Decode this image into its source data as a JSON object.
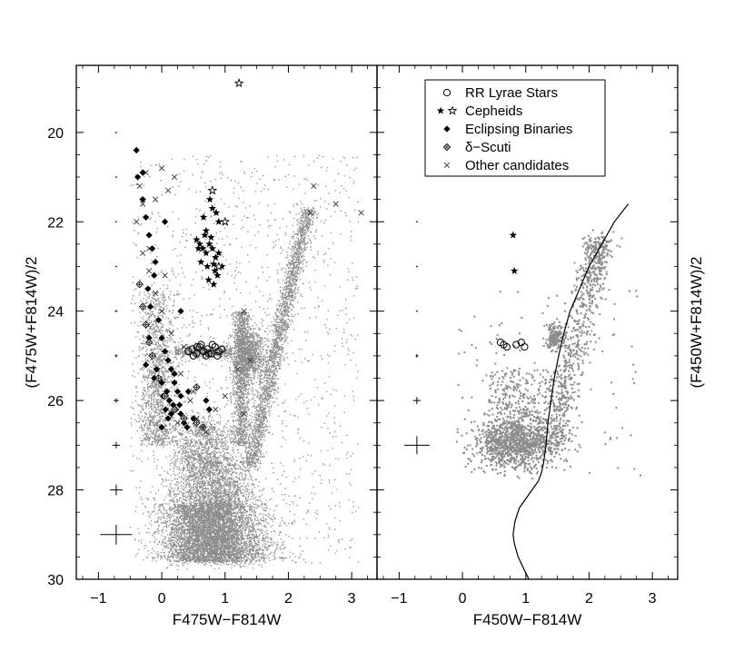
{
  "colors": {
    "background": "#ffffff",
    "axes": "#000000",
    "field_stars": "#8c8c8c",
    "variables": "#000000"
  },
  "chart_data": [
    {
      "type": "scatter",
      "panel": "left",
      "xlabel": "F475W−F814W",
      "ylabel": "(F475W+F814W)/2",
      "xlim": [
        -1.35,
        3.4
      ],
      "ylim": [
        30.0,
        18.5
      ],
      "y_inverted": true,
      "xticks": [
        "−1",
        "0",
        "1",
        "2",
        "3"
      ],
      "xtick_values": [
        -1,
        0,
        1,
        2,
        3
      ],
      "yticks": [
        "20",
        "22",
        "24",
        "26",
        "28",
        "30"
      ],
      "ytick_values": [
        20,
        22,
        24,
        26,
        28,
        30
      ],
      "grid": false,
      "field_population": {
        "description_marker": "small gray dots (dense)",
        "components": [
          {
            "name": "main sequence",
            "x_range": [
              -0.1,
              1.5
            ],
            "y_range": [
              26.3,
              29.6
            ]
          },
          {
            "name": "red giant branch",
            "x_range": [
              1.0,
              2.4
            ],
            "y_range": [
              21.7,
              27.5
            ]
          },
          {
            "name": "red clump",
            "x_center": 1.4,
            "y_center": 25.0
          },
          {
            "name": "blue plume",
            "x_range": [
              -0.4,
              0.3
            ],
            "y_range": [
              23.5,
              27.0
            ]
          },
          {
            "name": "horizontal branch",
            "x_range": [
              0.6,
              1.1
            ],
            "y_range": [
              24.8,
              25.0
            ]
          }
        ]
      },
      "series": [
        {
          "name": "RR Lyrae Stars",
          "marker": "circle-open",
          "x": [
            0.42,
            0.48,
            0.55,
            0.6,
            0.66,
            0.72,
            0.78,
            0.84,
            0.9,
            0.5,
            0.62,
            0.7,
            0.8,
            0.88,
            0.56,
            0.74,
            0.95
          ],
          "y": [
            24.9,
            24.85,
            24.95,
            24.8,
            24.9,
            24.85,
            24.95,
            24.8,
            24.9,
            25.0,
            24.75,
            25.0,
            24.75,
            25.0,
            24.8,
            24.95,
            24.85
          ]
        },
        {
          "name": "Cepheids",
          "marker": "star",
          "x": [
            0.55,
            0.6,
            0.65,
            0.7,
            0.75,
            0.8,
            0.85,
            0.9,
            0.62,
            0.72,
            0.82,
            0.68,
            0.78,
            0.88,
            0.58,
            0.74,
            0.84,
            0.66,
            0.8,
            0.9,
            0.76,
            0.86,
            0.7,
            0.82,
            0.95
          ],
          "y": [
            22.4,
            22.5,
            22.6,
            22.7,
            22.5,
            22.6,
            22.8,
            22.7,
            22.9,
            23.0,
            22.95,
            22.3,
            22.35,
            23.2,
            22.6,
            23.3,
            23.1,
            21.9,
            21.7,
            22.0,
            21.5,
            21.8,
            22.2,
            23.4,
            23.0
          ]
        },
        {
          "name": "Cepheids (open)",
          "marker": "star-open",
          "x": [
            1.22,
            0.8,
            1.0,
            0.9
          ],
          "y": [
            18.9,
            21.3,
            22.0,
            23.0
          ]
        },
        {
          "name": "Eclipsing Binaries",
          "marker": "diamond",
          "x": [
            -0.4,
            -0.38,
            -0.3,
            -0.25,
            -0.2,
            -0.15,
            -0.1,
            -0.12,
            -0.22,
            -0.18,
            -0.05,
            0.0,
            0.05,
            0.1,
            0.15,
            0.2,
            0.25,
            0.3,
            -0.2,
            -0.15,
            -0.08,
            0.0,
            0.08,
            0.12,
            0.18,
            0.22,
            0.3,
            0.35,
            0.4,
            -0.25,
            -0.12,
            0.02,
            0.15,
            0.28,
            0.42,
            0.5,
            0.7,
            0.75,
            0.0,
            0.1,
            0.06,
            0.2,
            0.3,
            -0.3,
            0.05
          ],
          "y": [
            20.4,
            21.0,
            21.5,
            21.9,
            22.3,
            22.6,
            22.9,
            23.2,
            23.5,
            23.9,
            24.2,
            24.6,
            24.9,
            25.1,
            25.3,
            25.6,
            25.8,
            25.9,
            24.6,
            25.0,
            25.3,
            25.6,
            25.8,
            26.0,
            26.1,
            26.2,
            26.3,
            26.5,
            26.6,
            25.2,
            25.5,
            25.9,
            26.3,
            26.1,
            25.8,
            26.4,
            26.0,
            26.2,
            26.6,
            26.4,
            26.2,
            25.4,
            24.0,
            20.9,
            22.0
          ]
        },
        {
          "name": "δ−Scuti",
          "marker": "diamond-open",
          "x": [
            -0.35,
            -0.3,
            -0.25,
            -0.2,
            -0.15,
            -0.05,
            0.05,
            0.2,
            0.35,
            0.55,
            0.65,
            0.55
          ],
          "y": [
            23.4,
            23.9,
            24.3,
            24.7,
            25.0,
            25.5,
            25.9,
            26.2,
            26.4,
            26.5,
            26.6,
            25.7
          ]
        },
        {
          "name": "Other candidates",
          "marker": "cross",
          "x": [
            -0.35,
            -0.3,
            -0.25,
            -0.1,
            0.0,
            0.1,
            0.2,
            -0.4,
            -0.3,
            -0.2,
            -0.1,
            0.0,
            0.15,
            0.3,
            0.45,
            0.55,
            0.65,
            0.7,
            0.85,
            1.0,
            1.2,
            1.3,
            1.4,
            2.4,
            2.75,
            3.15,
            2.35,
            -0.2,
            0.05,
            0.35,
            0.5,
            0.25,
            1.3
          ],
          "y": [
            21.2,
            21.6,
            20.9,
            21.5,
            20.8,
            21.3,
            21.0,
            22.0,
            22.7,
            23.1,
            23.6,
            24.0,
            24.5,
            25.4,
            26.0,
            26.4,
            26.6,
            26.7,
            26.2,
            25.9,
            25.3,
            24.0,
            25.1,
            21.2,
            21.6,
            21.8,
            21.8,
            22.6,
            23.2,
            24.8,
            25.8,
            26.5,
            26.3
          ]
        }
      ],
      "error_bars": [
        {
          "x": -0.72,
          "y": 20.0,
          "xerr": 0.0,
          "yerr": 0.0
        },
        {
          "x": -0.72,
          "y": 21.0,
          "xerr": 0.0,
          "yerr": 0.0
        },
        {
          "x": -0.72,
          "y": 22.0,
          "xerr": 0.01,
          "yerr": 0.01
        },
        {
          "x": -0.72,
          "y": 23.0,
          "xerr": 0.01,
          "yerr": 0.01
        },
        {
          "x": -0.72,
          "y": 24.0,
          "xerr": 0.02,
          "yerr": 0.02
        },
        {
          "x": -0.72,
          "y": 25.0,
          "xerr": 0.02,
          "yerr": 0.03
        },
        {
          "x": -0.72,
          "y": 26.0,
          "xerr": 0.04,
          "yerr": 0.05
        },
        {
          "x": -0.72,
          "y": 27.0,
          "xerr": 0.06,
          "yerr": 0.07
        },
        {
          "x": -0.72,
          "y": 28.0,
          "xerr": 0.1,
          "yerr": 0.12
        },
        {
          "x": -0.72,
          "y": 29.0,
          "xerr": 0.25,
          "yerr": 0.22
        }
      ]
    },
    {
      "type": "scatter",
      "panel": "right",
      "xlabel": "F450W−F814W",
      "ylabel": "(F450W+F814W)/2",
      "xlim": [
        -1.35,
        3.4
      ],
      "ylim": [
        30.0,
        18.5
      ],
      "y_inverted": true,
      "xticks": [
        "−1",
        "0",
        "1",
        "2",
        "3"
      ],
      "xtick_values": [
        -1,
        0,
        1,
        2,
        3
      ],
      "yticks": [
        "20",
        "22",
        "24",
        "26",
        "28",
        "30"
      ],
      "ytick_values": [
        20,
        22,
        24,
        26,
        28,
        30
      ],
      "grid": false,
      "legend": {
        "placement": "top-center",
        "entries": [
          {
            "label": "RR Lyrae Stars",
            "marker": "circle-open"
          },
          {
            "label": "Cepheids",
            "marker": "star-pair"
          },
          {
            "label": "Eclipsing Binaries",
            "marker": "diamond"
          },
          {
            "label": "δ−Scuti",
            "marker": "diamond-open"
          },
          {
            "label": "Other candidates",
            "marker": "cross"
          }
        ]
      },
      "field_population": {
        "description_marker": "small gray dots (sparse)",
        "components": [
          {
            "name": "main sequence clump",
            "x_center": 0.85,
            "y_center": 26.9
          },
          {
            "name": "red giant branch",
            "x_range": [
              1.2,
              2.2
            ],
            "y_range": [
              22.4,
              27.0
            ]
          },
          {
            "name": "red clump",
            "x_center": 1.45,
            "y_center": 24.5
          }
        ]
      },
      "series": [
        {
          "name": "RR Lyrae Stars",
          "marker": "circle-open",
          "x": [
            0.6,
            0.65,
            0.7,
            0.85,
            0.93,
            0.98
          ],
          "y": [
            24.7,
            24.75,
            24.8,
            24.75,
            24.7,
            24.8
          ]
        },
        {
          "name": "Cepheids",
          "marker": "star",
          "x": [
            0.8,
            0.82
          ],
          "y": [
            22.3,
            23.1
          ]
        },
        {
          "name": "isochrone",
          "marker": "line",
          "x": [
            2.62,
            2.4,
            2.2,
            2.0,
            1.85,
            1.7,
            1.6,
            1.52,
            1.45,
            1.4,
            1.35,
            1.32,
            1.3,
            1.28,
            1.25,
            1.2,
            1.05,
            0.9,
            0.83,
            0.8,
            0.82,
            0.88,
            0.98,
            1.05
          ],
          "y": [
            21.6,
            22.0,
            22.5,
            23.0,
            23.5,
            24.0,
            24.5,
            25.0,
            25.5,
            26.0,
            26.5,
            27.0,
            27.2,
            27.4,
            27.6,
            27.8,
            28.1,
            28.4,
            28.7,
            29.0,
            29.2,
            29.5,
            29.8,
            30.0
          ]
        }
      ],
      "error_bars": [
        {
          "x": -0.72,
          "y": 22.0,
          "xerr": 0.0,
          "yerr": 0.0
        },
        {
          "x": -0.72,
          "y": 23.0,
          "xerr": 0.0,
          "yerr": 0.0
        },
        {
          "x": -0.72,
          "y": 24.0,
          "xerr": 0.01,
          "yerr": 0.01
        },
        {
          "x": -0.72,
          "y": 25.0,
          "xerr": 0.02,
          "yerr": 0.04
        },
        {
          "x": -0.72,
          "y": 26.0,
          "xerr": 0.06,
          "yerr": 0.08
        },
        {
          "x": -0.72,
          "y": 27.0,
          "xerr": 0.2,
          "yerr": 0.2
        }
      ]
    }
  ]
}
